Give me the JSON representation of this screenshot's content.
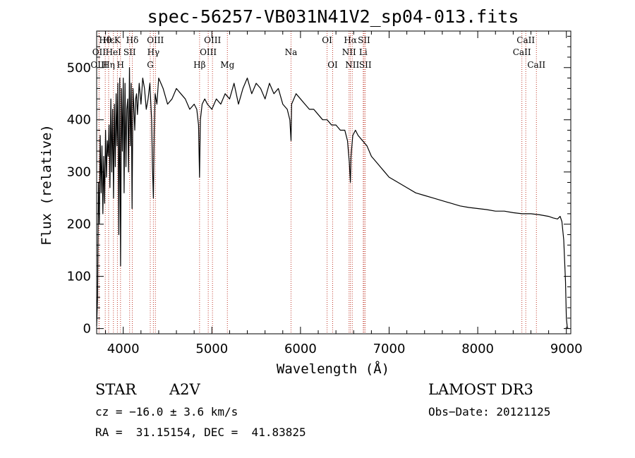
{
  "chart_data": {
    "type": "line",
    "title": "spec-56257-VB031N41V2_sp04-013.fits",
    "xlabel": "Wavelength (Å)",
    "ylabel": "Flux (relative)",
    "xlim": [
      3700,
      9050
    ],
    "ylim": [
      -10,
      570
    ],
    "x_ticks": [
      4000,
      5000,
      6000,
      7000,
      8000,
      9000
    ],
    "y_ticks": [
      0,
      100,
      200,
      300,
      400,
      500
    ],
    "grid": false,
    "series": [
      {
        "name": "flux",
        "x": [
          3700,
          3710,
          3720,
          3730,
          3740,
          3750,
          3760,
          3770,
          3780,
          3790,
          3800,
          3810,
          3820,
          3830,
          3840,
          3850,
          3860,
          3870,
          3880,
          3890,
          3900,
          3910,
          3920,
          3930,
          3940,
          3950,
          3960,
          3970,
          3980,
          3990,
          4000,
          4010,
          4020,
          4030,
          4040,
          4050,
          4060,
          4070,
          4080,
          4090,
          4100,
          4110,
          4120,
          4130,
          4140,
          4150,
          4160,
          4180,
          4200,
          4220,
          4240,
          4260,
          4280,
          4300,
          4320,
          4330,
          4340,
          4350,
          4360,
          4380,
          4400,
          4450,
          4500,
          4550,
          4600,
          4650,
          4700,
          4750,
          4800,
          4830,
          4850,
          4861,
          4870,
          4890,
          4920,
          4950,
          5000,
          5050,
          5100,
          5150,
          5200,
          5250,
          5300,
          5350,
          5400,
          5450,
          5500,
          5550,
          5600,
          5650,
          5700,
          5750,
          5800,
          5850,
          5880,
          5893,
          5900,
          5950,
          6000,
          6050,
          6100,
          6150,
          6200,
          6250,
          6300,
          6350,
          6400,
          6450,
          6500,
          6530,
          6550,
          6563,
          6570,
          6590,
          6620,
          6650,
          6700,
          6750,
          6800,
          6850,
          6900,
          6950,
          7000,
          7100,
          7200,
          7300,
          7400,
          7500,
          7600,
          7700,
          7800,
          7900,
          8000,
          8100,
          8200,
          8300,
          8400,
          8500,
          8600,
          8700,
          8800,
          8850,
          8900,
          8930,
          8950,
          8970,
          8990,
          9000,
          9010,
          9020
        ],
        "values": [
          5,
          60,
          280,
          200,
          370,
          260,
          350,
          220,
          330,
          240,
          380,
          290,
          360,
          330,
          390,
          270,
          440,
          300,
          420,
          250,
          430,
          310,
          450,
          350,
          470,
          180,
          480,
          120,
          460,
          340,
          480,
          260,
          470,
          310,
          420,
          440,
          300,
          500,
          350,
          470,
          230,
          460,
          420,
          380,
          440,
          450,
          410,
          470,
          430,
          480,
          460,
          420,
          440,
          470,
          400,
          310,
          250,
          380,
          450,
          430,
          480,
          460,
          430,
          440,
          460,
          450,
          440,
          420,
          430,
          420,
          390,
          290,
          400,
          430,
          440,
          430,
          420,
          440,
          430,
          450,
          440,
          470,
          430,
          460,
          480,
          450,
          470,
          460,
          440,
          470,
          450,
          460,
          430,
          420,
          400,
          360,
          430,
          450,
          440,
          430,
          420,
          420,
          410,
          400,
          400,
          390,
          390,
          380,
          380,
          360,
          320,
          280,
          330,
          370,
          380,
          370,
          360,
          350,
          330,
          320,
          310,
          300,
          290,
          280,
          270,
          260,
          255,
          250,
          245,
          240,
          235,
          232,
          230,
          228,
          225,
          225,
          222,
          220,
          220,
          218,
          215,
          212,
          210,
          215,
          205,
          170,
          90,
          20,
          3,
          0
        ]
      }
    ],
    "line_annotations": [
      {
        "label": "Hθ",
        "x": 3797,
        "row": 1
      },
      {
        "label": "Hε",
        "x": 3835,
        "row": 1
      },
      {
        "label": "K",
        "x": 3934,
        "row": 1
      },
      {
        "label": "Hδ",
        "x": 4102,
        "row": 1
      },
      {
        "label": "OIII",
        "x": 4363,
        "row": 1
      },
      {
        "label": "OIII",
        "x": 5007,
        "row": 1
      },
      {
        "label": "OI",
        "x": 6300,
        "row": 1
      },
      {
        "label": "Hα",
        "x": 6563,
        "row": 1
      },
      {
        "label": "SII",
        "x": 6717,
        "row": 1
      },
      {
        "label": "CaII",
        "x": 8542,
        "row": 1
      },
      {
        "label": "OII",
        "x": 3727,
        "row": 2
      },
      {
        "label": "HeI",
        "x": 3889,
        "row": 2
      },
      {
        "label": "SII",
        "x": 4072,
        "row": 2
      },
      {
        "label": "Hγ",
        "x": 4340,
        "row": 2
      },
      {
        "label": "OIII",
        "x": 4959,
        "row": 2
      },
      {
        "label": "Na",
        "x": 5893,
        "row": 2
      },
      {
        "label": "NII",
        "x": 6548,
        "row": 2
      },
      {
        "label": "Li",
        "x": 6708,
        "row": 2
      },
      {
        "label": "CaII",
        "x": 8498,
        "row": 2
      },
      {
        "label": "OIII",
        "x": 3727,
        "row": 3
      },
      {
        "label": "Hη",
        "x": 3835,
        "row": 3
      },
      {
        "label": "H",
        "x": 3969,
        "row": 3
      },
      {
        "label": "G",
        "x": 4305,
        "row": 3
      },
      {
        "label": "Hβ",
        "x": 4861,
        "row": 3
      },
      {
        "label": "Mg",
        "x": 5175,
        "row": 3
      },
      {
        "label": "OI",
        "x": 6363,
        "row": 3
      },
      {
        "label": "NII",
        "x": 6584,
        "row": 3
      },
      {
        "label": "SII",
        "x": 6731,
        "row": 3
      },
      {
        "label": "CaII",
        "x": 8662,
        "row": 3
      }
    ]
  },
  "info": {
    "object_class": "STAR",
    "subclass": "A2V",
    "survey": "LAMOST DR3",
    "redshift": "cz = −16.0 ± 3.6 km/s",
    "obs_date": "Obs−Date: 20121125",
    "coords": "RA =  31.15154, DEC =  41.83825"
  }
}
